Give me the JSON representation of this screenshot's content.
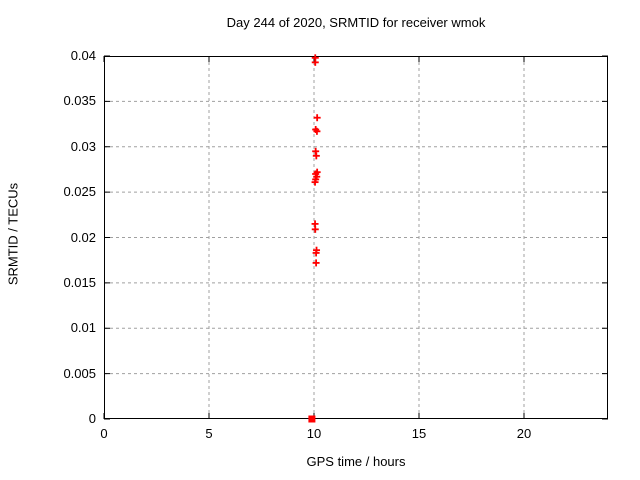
{
  "chart_data": {
    "type": "scatter",
    "title": "Day 244 of 2020, SRMTID for receiver wmok",
    "xlabel": "GPS time / hours",
    "ylabel": "SRMTID / TECUs",
    "xlim": [
      0,
      24
    ],
    "ylim": [
      0,
      0.04
    ],
    "xticks": [
      0,
      5,
      10,
      15,
      20
    ],
    "yticks": [
      0,
      0.005,
      0.01,
      0.015,
      0.02,
      0.025,
      0.03,
      0.035,
      0.04
    ],
    "xtick_labels": [
      "0",
      "5",
      "10",
      "15",
      "20"
    ],
    "ytick_labels": [
      "0",
      "0.005",
      "0.01",
      "0.015",
      "0.02",
      "0.025",
      "0.03",
      "0.035",
      "0.04"
    ],
    "grid": true,
    "legend_position": "none",
    "series": [
      {
        "name": "srmtid-values",
        "marker": "plus",
        "color": "#ff0000",
        "points": [
          [
            10.06,
            0.0398
          ],
          [
            10.06,
            0.0393
          ],
          [
            10.15,
            0.0332
          ],
          [
            10.08,
            0.0319
          ],
          [
            10.14,
            0.0317
          ],
          [
            10.08,
            0.0295
          ],
          [
            10.11,
            0.029
          ],
          [
            10.15,
            0.0272
          ],
          [
            10.08,
            0.027
          ],
          [
            10.13,
            0.0267
          ],
          [
            10.08,
            0.0264
          ],
          [
            10.05,
            0.0261
          ],
          [
            10.05,
            0.0215
          ],
          [
            10.06,
            0.0209
          ],
          [
            10.12,
            0.0186
          ],
          [
            10.1,
            0.0183
          ],
          [
            10.1,
            0.0172
          ]
        ]
      },
      {
        "name": "zero-baseline-marker",
        "marker": "filled-square",
        "color": "#ff0000",
        "points": [
          [
            9.9,
            0.0
          ]
        ]
      }
    ]
  },
  "colors": {
    "marker": "#ff0000",
    "grid": "#a0a0a0",
    "axis": "#000000",
    "background": "#ffffff"
  }
}
